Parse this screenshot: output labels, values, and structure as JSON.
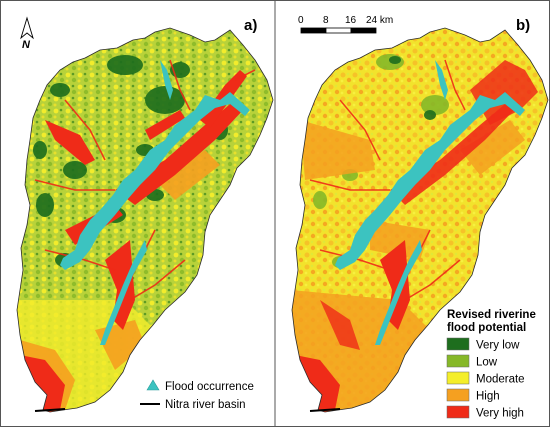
{
  "panels": {
    "a": {
      "label": "a)"
    },
    "b": {
      "label": "b)"
    }
  },
  "north_arrow": {
    "label": "N"
  },
  "scale_bar": {
    "ticks": [
      "0",
      "8",
      "16",
      "24 km"
    ]
  },
  "legend_a": {
    "flood_occurrence": "Flood occurrence",
    "basin": "Nitra river basin"
  },
  "legend_b": {
    "title_line1": "Revised riverine",
    "title_line2": "flood potential",
    "classes": [
      {
        "label": "Very low",
        "color": "#1e6e1e"
      },
      {
        "label": "Low",
        "color": "#86b828"
      },
      {
        "label": "Moderate",
        "color": "#f4ee2a"
      },
      {
        "label": "High",
        "color": "#f5a020"
      },
      {
        "label": "Very high",
        "color": "#ef2b18"
      }
    ]
  },
  "colors": {
    "flood_marker": "#3cc3c0",
    "basin_outline": "#000000"
  }
}
